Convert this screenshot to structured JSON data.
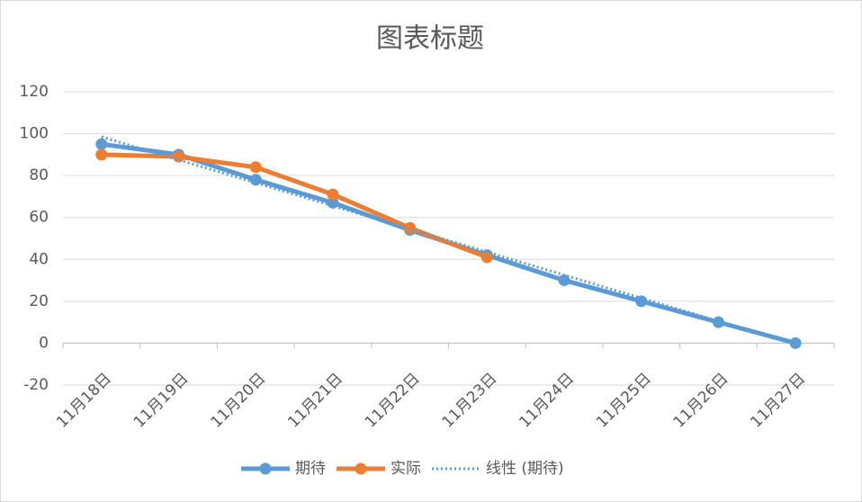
{
  "chart_data": {
    "type": "line",
    "title": "图表标题",
    "categories": [
      "11月18日",
      "11月19日",
      "11月20日",
      "11月21日",
      "11月22日",
      "11月23日",
      "11月24日",
      "11月25日",
      "11月26日",
      "11月27日"
    ],
    "series": [
      {
        "name": "期待",
        "color": "#5b9bd5",
        "marker": true,
        "dash": "solid",
        "values": [
          95,
          90,
          78,
          67,
          54,
          42,
          30,
          20,
          10,
          0
        ]
      },
      {
        "name": "实际",
        "color": "#ed7d31",
        "marker": true,
        "dash": "solid",
        "values": [
          90,
          89,
          84,
          71,
          55,
          41,
          null,
          null,
          null,
          null
        ]
      },
      {
        "name": "线性 (期待)",
        "color": "#5b9bd5",
        "marker": false,
        "dash": "dotted",
        "values": [
          98.5,
          87.5,
          76.5,
          65.5,
          54.5,
          43.5,
          32.5,
          21.5,
          10.5,
          -0.5
        ]
      }
    ],
    "ylim": [
      -20,
      120
    ],
    "yticks": [
      -20,
      0,
      20,
      40,
      60,
      80,
      100,
      120
    ],
    "grid": true,
    "legend": "bottom"
  }
}
